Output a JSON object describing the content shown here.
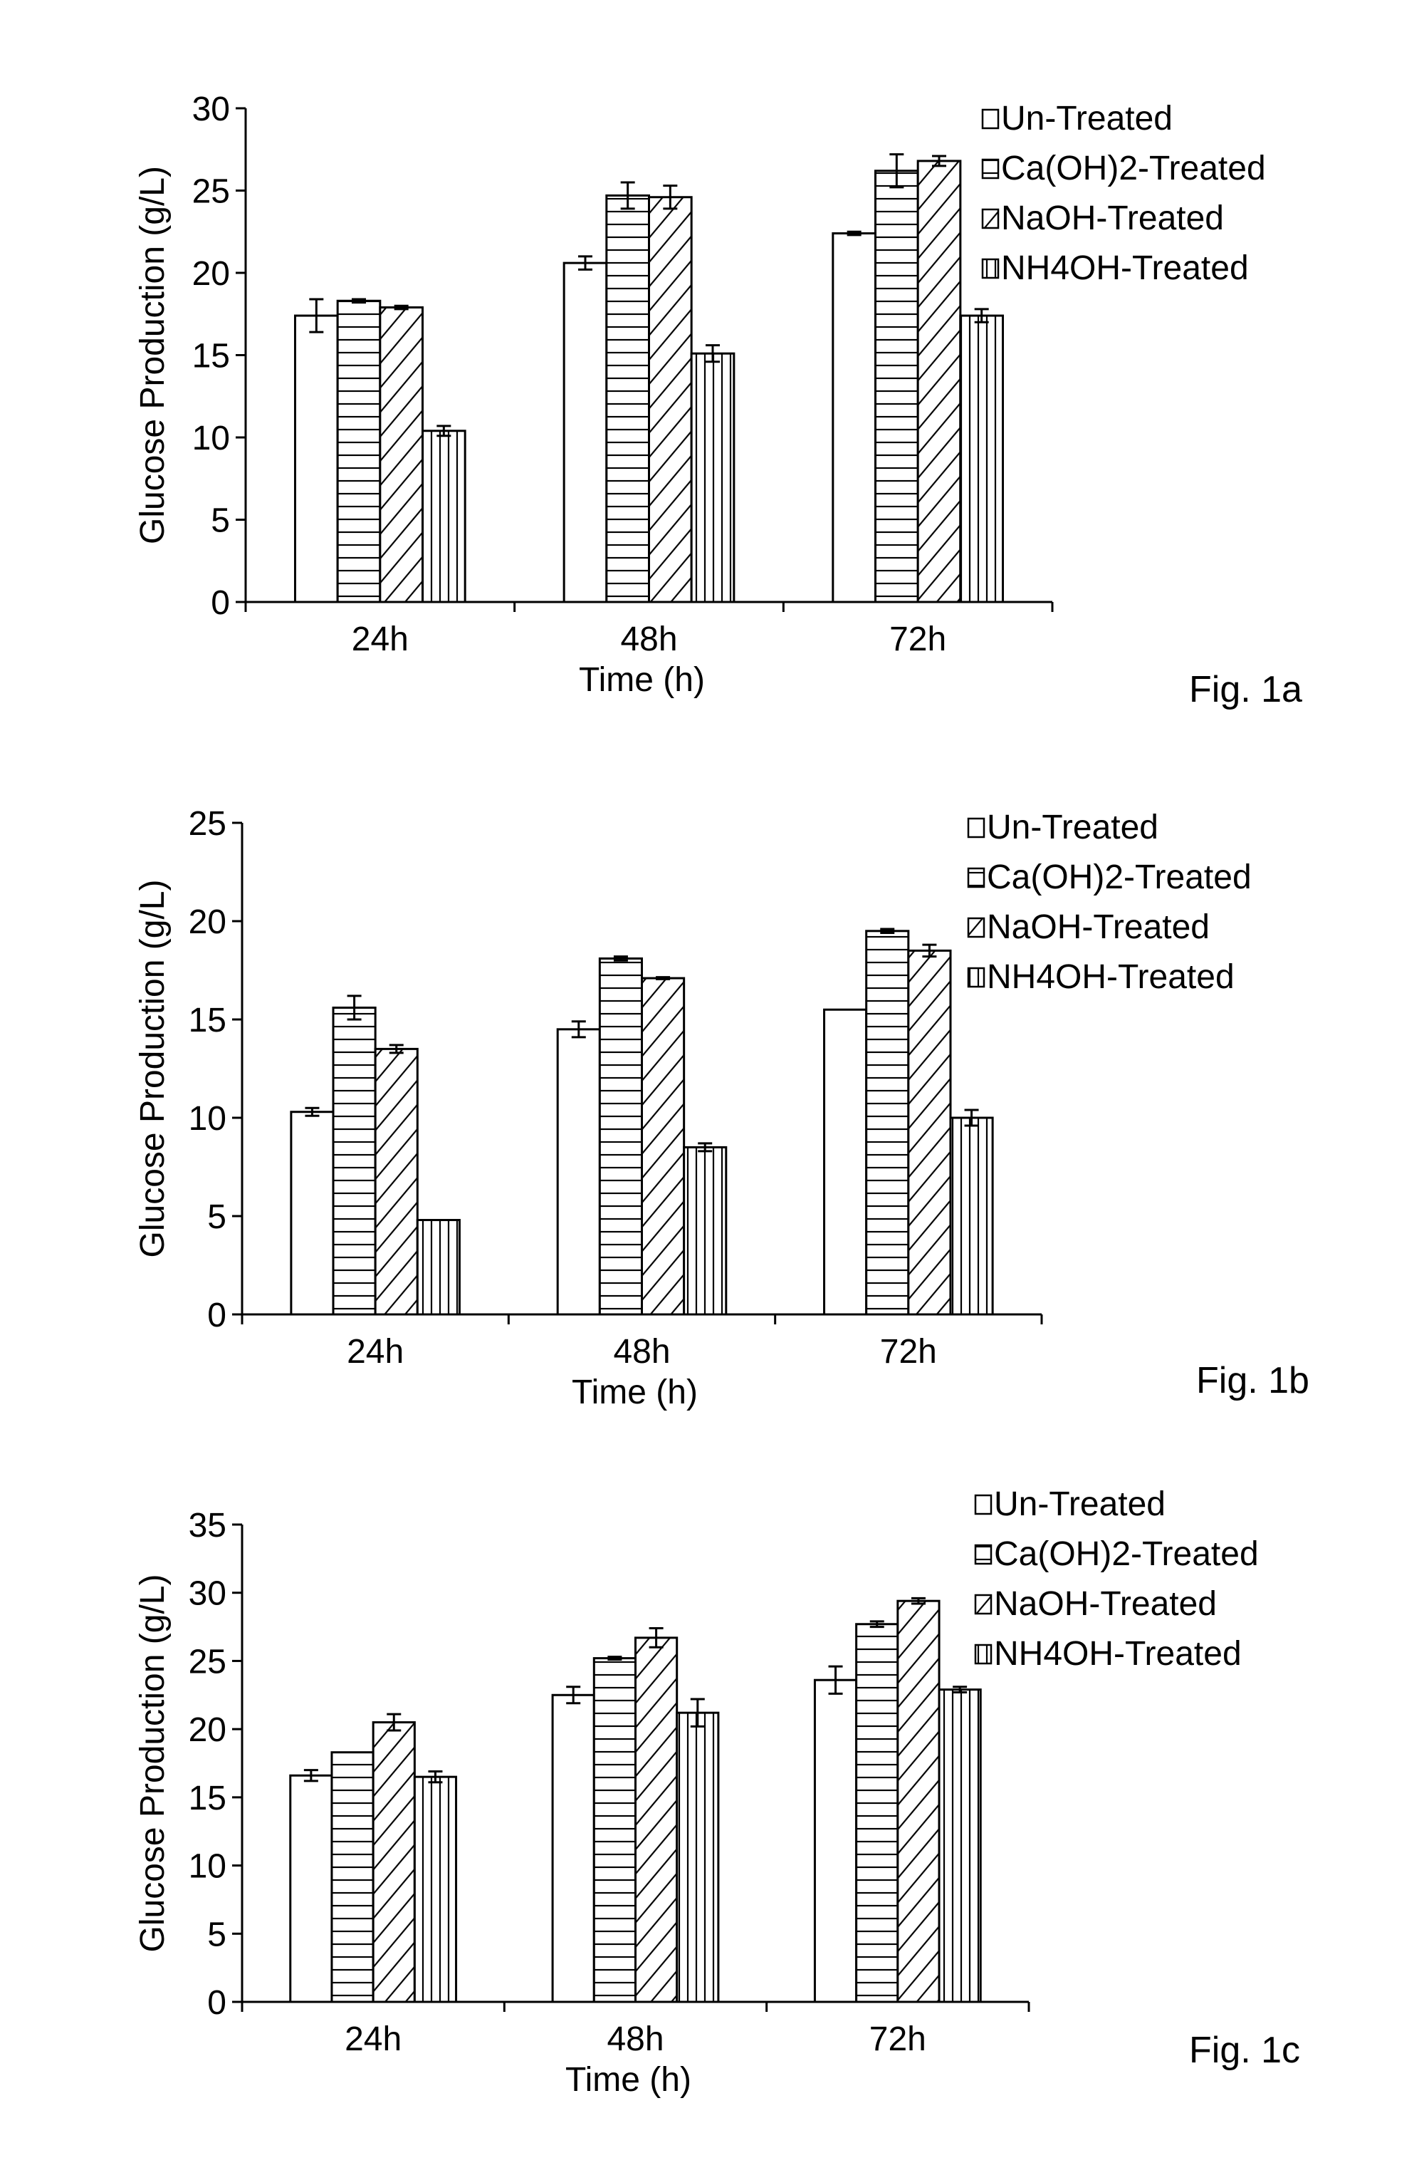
{
  "chart_data": [
    {
      "type": "bar",
      "caption": "Fig. 1a",
      "categories": [
        "24h",
        "48h",
        "72h"
      ],
      "xlabel": "Time (h)",
      "ylabel": "Glucose Production (g/L)",
      "ylim": [
        0,
        30
      ],
      "yticks": [
        0,
        5,
        10,
        15,
        20,
        25,
        30
      ],
      "legend_position": "top-right",
      "series": [
        {
          "name": "Un-Treated",
          "pattern": "open",
          "values": [
            17.4,
            20.6,
            22.4
          ],
          "errors": [
            1.0,
            0.4,
            0.1
          ]
        },
        {
          "name": "Ca(OH)2-Treated",
          "pattern": "horizontal",
          "values": [
            18.3,
            24.7,
            26.2
          ],
          "errors": [
            0.1,
            0.8,
            1.0
          ]
        },
        {
          "name": "NaOH-Treated",
          "pattern": "diagonal",
          "values": [
            17.9,
            24.6,
            26.8
          ],
          "errors": [
            0.1,
            0.7,
            0.3
          ]
        },
        {
          "name": "NH4OH-Treated",
          "pattern": "vertical",
          "values": [
            10.4,
            15.1,
            17.4
          ],
          "errors": [
            0.3,
            0.5,
            0.4
          ]
        }
      ]
    },
    {
      "type": "bar",
      "caption": "Fig. 1b",
      "categories": [
        "24h",
        "48h",
        "72h"
      ],
      "xlabel": "Time (h)",
      "ylabel": "Glucose Production (g/L)",
      "ylim": [
        0,
        25
      ],
      "yticks": [
        0,
        5,
        10,
        15,
        20,
        25
      ],
      "legend_position": "top-right",
      "series": [
        {
          "name": "Un-Treated",
          "pattern": "open",
          "values": [
            10.3,
            14.5,
            15.5
          ],
          "errors": [
            0.2,
            0.4,
            0.0
          ]
        },
        {
          "name": "Ca(OH)2-Treated",
          "pattern": "horizontal",
          "values": [
            15.6,
            18.1,
            19.5
          ],
          "errors": [
            0.6,
            0.1,
            0.1
          ]
        },
        {
          "name": "NaOH-Treated",
          "pattern": "diagonal",
          "values": [
            13.5,
            17.1,
            18.5
          ],
          "errors": [
            0.2,
            0.05,
            0.3
          ]
        },
        {
          "name": "NH4OH-Treated",
          "pattern": "vertical",
          "values": [
            4.8,
            8.5,
            10.0
          ],
          "errors": [
            0.0,
            0.2,
            0.4
          ]
        }
      ]
    },
    {
      "type": "bar",
      "caption": "Fig. 1c",
      "categories": [
        "24h",
        "48h",
        "72h"
      ],
      "xlabel": "Time (h)",
      "ylabel": "Glucose Production (g/L)",
      "ylim": [
        0,
        35
      ],
      "yticks": [
        0,
        5,
        10,
        15,
        20,
        25,
        30,
        35
      ],
      "legend_position": "top-right",
      "series": [
        {
          "name": "Un-Treated",
          "pattern": "open",
          "values": [
            16.6,
            22.5,
            23.6
          ],
          "errors": [
            0.4,
            0.6,
            1.0
          ]
        },
        {
          "name": "Ca(OH)2-Treated",
          "pattern": "horizontal",
          "values": [
            18.3,
            25.2,
            27.7
          ],
          "errors": [
            0.0,
            0.1,
            0.2
          ]
        },
        {
          "name": "NaOH-Treated",
          "pattern": "diagonal",
          "values": [
            20.5,
            26.7,
            29.4
          ],
          "errors": [
            0.6,
            0.7,
            0.2
          ]
        },
        {
          "name": "NH4OH-Treated",
          "pattern": "vertical",
          "values": [
            16.5,
            21.2,
            22.9
          ],
          "errors": [
            0.4,
            1.0,
            0.2
          ]
        }
      ]
    }
  ]
}
